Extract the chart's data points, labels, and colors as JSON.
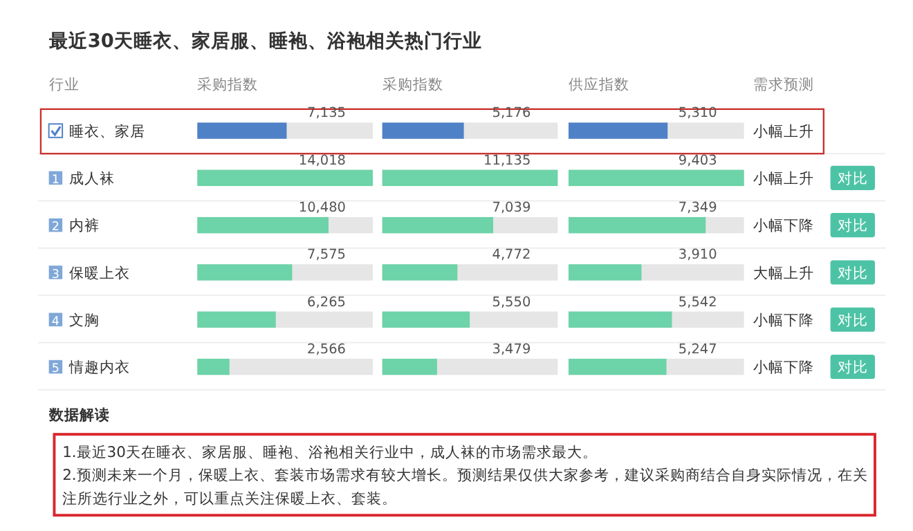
{
  "chart_data": [
    {
      "type": "bar",
      "orientation": "horizontal",
      "title": "最近30天睡衣、家居服、睡袍、浴袍相关热门行业",
      "ylabel": "行业",
      "xlabel": "采购指数",
      "categories": [
        "睡衣、家居",
        "成人袜",
        "内裤",
        "保暖上衣",
        "文胸",
        "情趣内衣"
      ],
      "values": [
        7135,
        14018,
        10480,
        7575,
        6265,
        2566
      ],
      "value_labels": [
        "7,135",
        "14,018",
        "10,480",
        "7,575",
        "6,265",
        "2,566"
      ],
      "colors": [
        "#4f81c7",
        "#6dd3a8",
        "#6dd3a8",
        "#6dd3a8",
        "#6dd3a8",
        "#6dd3a8"
      ],
      "annotations": [
        "1",
        "2",
        "3",
        "4",
        "5"
      ]
    },
    {
      "type": "bar",
      "orientation": "horizontal",
      "xlabel": "采购指数",
      "categories": [
        null,
        null,
        null,
        null,
        null,
        null
      ],
      "values": [
        5176,
        11135,
        7039,
        4772,
        5550,
        3479
      ],
      "value_labels": [
        "5,176",
        "11,135",
        "7,039",
        "4,772",
        "5,550",
        "3,479"
      ],
      "colors": [
        "#4f81c7",
        "#6dd3a8",
        "#6dd3a8",
        "#6dd3a8",
        "#6dd3a8",
        "#6dd3a8"
      ]
    },
    {
      "type": "bar",
      "orientation": "horizontal",
      "xlabel": "供应指数",
      "categories": [
        null,
        null,
        null,
        null,
        null,
        null
      ],
      "values": [
        5310,
        9403,
        7349,
        3910,
        5542,
        5247
      ],
      "value_labels": [
        "5,310",
        "9,403",
        "7,349",
        "3,910",
        "5,542",
        "5,247"
      ],
      "colors": [
        "#4f81c7",
        "#6dd3a8",
        "#6dd3a8",
        "#6dd3a8",
        "#6dd3a8",
        "#6dd3a8"
      ]
    },
    {
      "type": "other",
      "title": "需求预测",
      "annotations": [
        "小幅上升",
        "小幅上升",
        "小幅下降",
        "大幅上升",
        "小幅下降",
        "小幅下降",
        "对比",
        "对比",
        "对比",
        "对比",
        "对比"
      ]
    },
    {
      "type": "other",
      "title": "数据解读",
      "annotations": [
        "1.最近30天在睡衣、家居服、睡袍、浴袍相关行业中，成人袜的市场需求最大。",
        "2.预测未来一个月，保暖上衣、套装市场需求有较大增长。预测结果仅供大家参考，建议采购商结合自身实际情况，在关注所选行业之外，可以重点关注保暖上衣、套装。"
      ]
    }
  ]
}
